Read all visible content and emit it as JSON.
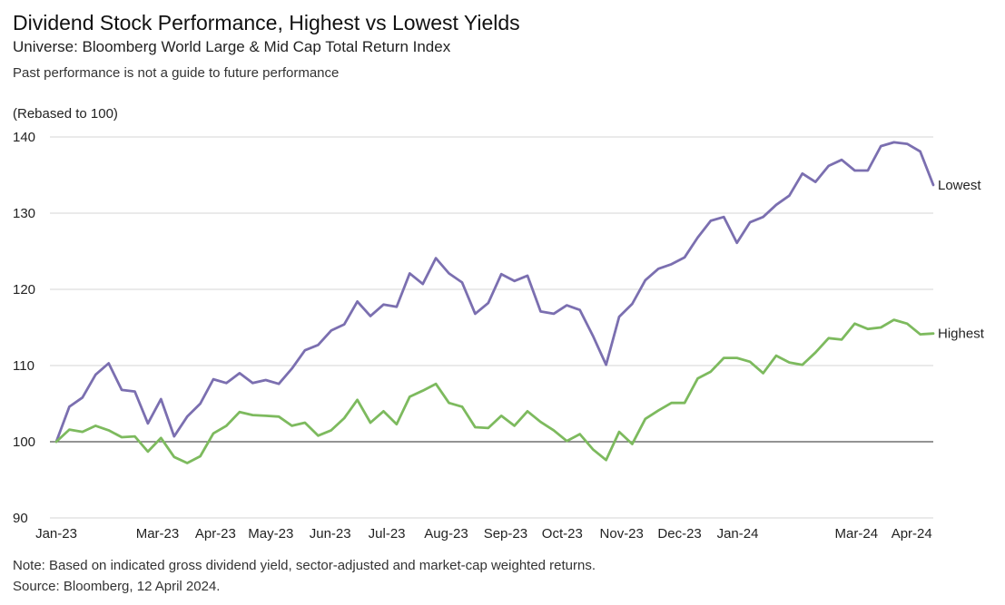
{
  "header": {
    "title": "Dividend Stock Performance, Highest vs Lowest Yields",
    "subtitle": "Universe: Bloomberg World Large & Mid Cap Total Return Index",
    "disclaimer": "Past performance is not a guide to future performance"
  },
  "footer": {
    "note": "Note: Based on indicated gross dividend yield, sector-adjusted and market-cap weighted returns.",
    "source": "Source: Bloomberg, 12 April 2024."
  },
  "colors": {
    "lowest": "#7b6fb0",
    "highest": "#7dba5e",
    "grid": "#d4d4d4",
    "baseline": "#555555"
  },
  "chart_data": {
    "type": "line",
    "ylabel": "(Rebased to 100)",
    "ylim": [
      90,
      140
    ],
    "yticks": [
      90,
      100,
      110,
      120,
      130,
      140
    ],
    "xlim": [
      0,
      65
    ],
    "xticks": [
      {
        "label": "Jan-23",
        "x": 0
      },
      {
        "label": "Mar-23",
        "x": 7.5
      },
      {
        "label": "Apr-23",
        "x": 11.8
      },
      {
        "label": "May-23",
        "x": 15.9
      },
      {
        "label": "Jun-23",
        "x": 20.3
      },
      {
        "label": "Jul-23",
        "x": 24.5
      },
      {
        "label": "Aug-23",
        "x": 28.9
      },
      {
        "label": "Sep-23",
        "x": 33.3
      },
      {
        "label": "Oct-23",
        "x": 37.5
      },
      {
        "label": "Nov-23",
        "x": 41.9
      },
      {
        "label": "Dec-23",
        "x": 46.2
      },
      {
        "label": "Jan-24",
        "x": 50.5
      },
      {
        "label": "Mar-24",
        "x": 59.3
      },
      {
        "label": "Apr-24",
        "x": 63.4
      }
    ],
    "grid": "horizontal",
    "series": [
      {
        "name": "Lowest",
        "values": [
          100.0,
          104.6,
          105.8,
          108.8,
          110.3,
          106.8,
          106.6,
          102.4,
          105.6,
          100.7,
          103.3,
          105.0,
          108.2,
          107.7,
          109.0,
          107.7,
          108.1,
          107.6,
          109.6,
          112.0,
          112.7,
          114.6,
          115.4,
          118.4,
          116.5,
          118.0,
          117.7,
          122.1,
          120.7,
          124.1,
          122.1,
          120.9,
          116.8,
          118.2,
          122.0,
          121.1,
          121.8,
          117.1,
          116.8,
          117.9,
          117.3,
          113.9,
          110.1,
          116.4,
          118.1,
          121.2,
          122.7,
          123.3,
          124.2,
          126.8,
          129.0,
          129.5,
          126.1,
          128.8,
          129.5,
          131.1,
          132.3,
          135.2,
          134.1,
          136.2,
          137.0,
          135.6,
          135.6,
          138.8,
          139.3,
          139.1,
          138.1,
          133.7
        ]
      },
      {
        "name": "Highest",
        "values": [
          100.0,
          101.6,
          101.3,
          102.1,
          101.5,
          100.6,
          100.7,
          98.7,
          100.5,
          98.0,
          97.2,
          98.1,
          101.1,
          102.1,
          103.9,
          103.5,
          103.4,
          103.3,
          102.1,
          102.5,
          100.8,
          101.5,
          103.1,
          105.5,
          102.5,
          104.0,
          102.3,
          105.9,
          106.7,
          107.6,
          105.1,
          104.6,
          101.9,
          101.8,
          103.4,
          102.1,
          104.0,
          102.6,
          101.5,
          100.1,
          101.0,
          99.0,
          97.6,
          101.3,
          99.7,
          103.0,
          104.1,
          105.1,
          105.1,
          108.3,
          109.2,
          111.0,
          111.0,
          110.5,
          109.0,
          111.3,
          110.4,
          110.1,
          111.7,
          113.6,
          113.4,
          115.5,
          114.8,
          115.0,
          116.0,
          115.5,
          114.1,
          114.2
        ]
      }
    ]
  }
}
